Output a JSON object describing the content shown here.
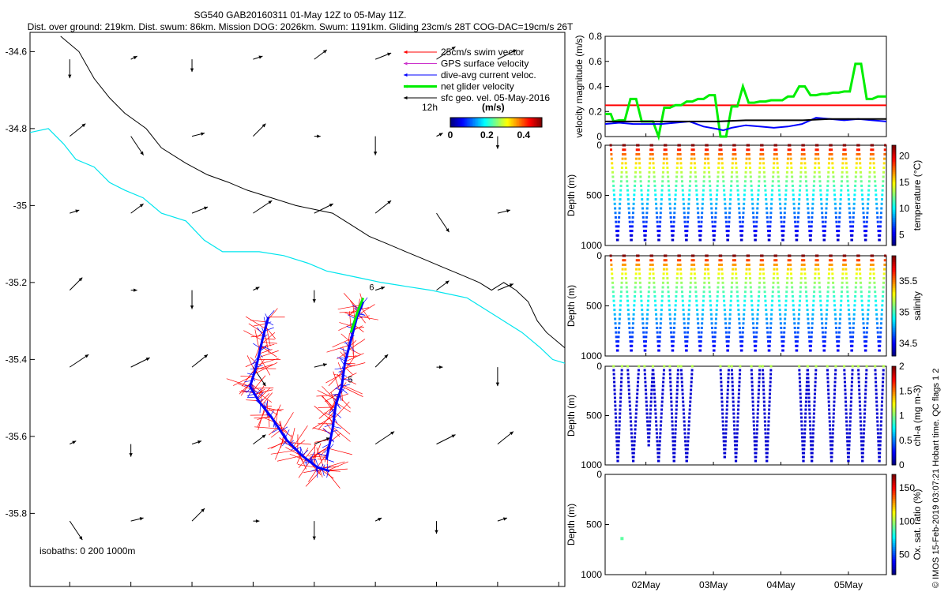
{
  "header": {
    "line1": "SG540 GAB20160311 01-May 12Z to 05-May 11Z.",
    "line2": "Dist. over ground: 219km. Dist. swum: 86km. Mission DOG: 2026km. Swum: 1191km. Gliding 23cm/s 28T COG-DAC=19cm/s 26T"
  },
  "footer_note": "© IMOS 15-Feb-2019 03:07:21 Hobart time. QC flags 1  2",
  "colors": {
    "swim": "#ff0000",
    "gps": "#cc33cc",
    "dac": "#0000ff",
    "net": "#00ee00",
    "sfc": "#000000",
    "isobath_200": "#00e5ee",
    "isobath_1000": "#000000",
    "threshold": "#ff0000"
  },
  "chart_data": [
    {
      "type": "scatter",
      "name": "map",
      "xlim": [
        132.87,
        134.62
      ],
      "ylim": [
        -35.99,
        -34.55
      ],
      "xticks": [
        133,
        133.2,
        133.4,
        133.6,
        133.8,
        134,
        134.2,
        134.4,
        134.6
      ],
      "yticks": [
        -34.6,
        -34.8,
        -35,
        -35.2,
        -35.4,
        -35.6,
        -35.8
      ],
      "legend": {
        "placement": "top-right",
        "entries": [
          "25cm/s swim vector",
          "GPS surface velocity",
          "dive-avg current veloc.",
          "net glider velocity",
          "sfc geo. vel. 05-May-2016"
        ],
        "time_label": "12h",
        "units": "(m/s)",
        "colorbar_ticks": [
          "0",
          "0.2",
          "0.4"
        ],
        "colorbar_range": [
          0,
          0.5
        ]
      },
      "isobath_label": "isobaths: 0   200  1000m",
      "isobath_1000": [
        [
          132.97,
          34.56
        ],
        [
          133.03,
          34.6
        ],
        [
          133.08,
          34.67
        ],
        [
          133.13,
          34.72
        ],
        [
          133.18,
          34.76
        ],
        [
          133.25,
          34.8
        ],
        [
          133.3,
          34.85
        ],
        [
          133.38,
          34.89
        ],
        [
          133.45,
          34.92
        ],
        [
          133.52,
          34.94
        ],
        [
          133.58,
          34.96
        ],
        [
          133.66,
          34.98
        ],
        [
          133.74,
          35.0
        ],
        [
          133.8,
          35.01
        ],
        [
          133.86,
          35.02
        ],
        [
          133.92,
          35.05
        ],
        [
          133.98,
          35.08
        ],
        [
          134.04,
          35.1
        ],
        [
          134.1,
          35.12
        ],
        [
          134.16,
          35.14
        ],
        [
          134.22,
          35.16
        ],
        [
          134.28,
          35.18
        ],
        [
          134.34,
          35.2
        ],
        [
          134.38,
          35.22
        ],
        [
          134.42,
          35.2
        ],
        [
          134.46,
          35.22
        ],
        [
          134.5,
          35.25
        ],
        [
          134.53,
          35.3
        ],
        [
          134.56,
          35.33
        ],
        [
          134.62,
          35.37
        ]
      ],
      "isobath_200": [
        [
          132.87,
          34.81
        ],
        [
          132.93,
          34.8
        ],
        [
          132.98,
          34.84
        ],
        [
          133.02,
          34.88
        ],
        [
          133.08,
          34.9
        ],
        [
          133.13,
          34.94
        ],
        [
          133.18,
          34.96
        ],
        [
          133.24,
          34.98
        ],
        [
          133.3,
          35.02
        ],
        [
          133.38,
          35.04
        ],
        [
          133.44,
          35.09
        ],
        [
          133.5,
          35.12
        ],
        [
          133.56,
          35.12
        ],
        [
          133.62,
          35.12
        ],
        [
          133.7,
          35.13
        ],
        [
          133.78,
          35.15
        ],
        [
          133.84,
          35.17
        ],
        [
          133.9,
          35.18
        ],
        [
          133.96,
          35.19
        ],
        [
          134.02,
          35.2
        ],
        [
          134.1,
          35.21
        ],
        [
          134.18,
          35.22
        ],
        [
          134.24,
          35.23
        ],
        [
          134.3,
          35.24
        ],
        [
          134.36,
          35.27
        ],
        [
          134.42,
          35.3
        ],
        [
          134.48,
          35.33
        ],
        [
          134.54,
          35.37
        ],
        [
          134.58,
          35.4
        ],
        [
          134.62,
          35.41
        ]
      ],
      "track_west": [
        [
          133.65,
          35.29
        ],
        [
          133.63,
          35.35
        ],
        [
          133.61,
          35.42
        ],
        [
          133.59,
          35.47
        ],
        [
          133.62,
          35.51
        ],
        [
          133.66,
          35.55
        ],
        [
          133.71,
          35.61
        ],
        [
          133.76,
          35.65
        ],
        [
          133.81,
          35.68
        ],
        [
          133.85,
          35.69
        ]
      ],
      "track_east": [
        [
          133.84,
          35.66
        ],
        [
          133.86,
          35.58
        ],
        [
          133.87,
          35.52
        ],
        [
          133.89,
          35.47
        ],
        [
          133.9,
          35.41
        ],
        [
          133.92,
          35.35
        ],
        [
          133.94,
          35.29
        ],
        [
          133.96,
          35.25
        ]
      ],
      "net_glider_track": [
        [
          133.92,
          35.33
        ],
        [
          133.94,
          35.28
        ],
        [
          133.96,
          35.24
        ]
      ],
      "track_markers": [
        {
          "text": "6",
          "lon": 133.98,
          "lat": -35.22
        },
        {
          "text": "5",
          "lon": 133.91,
          "lat": -35.46
        }
      ],
      "sfc_vectors_u_v_ms": [
        [
          0.0,
          -0.3
        ],
        [
          0.1,
          0.05
        ],
        [
          0.0,
          -0.2
        ],
        [
          0.15,
          0.05
        ],
        [
          0.2,
          0.15
        ],
        [
          0.25,
          0.1
        ],
        [
          0.3,
          0.2
        ],
        [
          0.3,
          0.15
        ],
        [
          0.25,
          0.2
        ],
        [
          0.2,
          -0.3
        ],
        [
          0.2,
          0.05
        ],
        [
          0.2,
          0.2
        ],
        [
          0.1,
          0.0
        ]
      ]
    },
    {
      "type": "line",
      "name": "velocity magnitude",
      "ylabel": "velocity magnitude (m/s)",
      "ylim": [
        0,
        0.8
      ],
      "yticks": [
        0,
        0.2,
        0.4,
        0.6,
        0.8
      ],
      "threshold": 0.25,
      "series": [
        {
          "color": "#00ee00",
          "x": [
            0,
            0.02,
            0.03,
            0.05,
            0.07,
            0.09,
            0.11,
            0.13,
            0.15,
            0.17,
            0.19,
            0.21,
            0.23,
            0.25,
            0.27,
            0.29,
            0.31,
            0.33,
            0.35,
            0.37,
            0.39,
            0.41,
            0.43,
            0.45,
            0.47,
            0.49,
            0.51,
            0.53,
            0.55,
            0.57,
            0.59,
            0.61,
            0.63,
            0.65,
            0.67,
            0.69,
            0.71,
            0.73,
            0.75,
            0.77,
            0.79,
            0.81,
            0.83,
            0.85,
            0.87,
            0.89,
            0.91,
            0.93,
            0.95,
            0.97,
            1.0
          ],
          "y": [
            0.18,
            0.18,
            0.12,
            0.13,
            0.13,
            0.3,
            0.3,
            0.12,
            0.12,
            0.12,
            0.0,
            0.23,
            0.23,
            0.25,
            0.25,
            0.28,
            0.28,
            0.3,
            0.3,
            0.33,
            0.33,
            0.0,
            0.0,
            0.24,
            0.24,
            0.4,
            0.27,
            0.27,
            0.28,
            0.28,
            0.29,
            0.29,
            0.29,
            0.32,
            0.32,
            0.4,
            0.4,
            0.33,
            0.33,
            0.34,
            0.34,
            0.35,
            0.35,
            0.36,
            0.36,
            0.58,
            0.58,
            0.3,
            0.3,
            0.32,
            0.32
          ]
        },
        {
          "color": "#0000ff",
          "x": [
            0,
            0.05,
            0.1,
            0.15,
            0.2,
            0.25,
            0.3,
            0.35,
            0.4,
            0.42,
            0.45,
            0.5,
            0.55,
            0.6,
            0.65,
            0.7,
            0.75,
            0.8,
            0.85,
            0.9,
            0.95,
            1.0
          ],
          "y": [
            0.1,
            0.11,
            0.1,
            0.1,
            0.1,
            0.11,
            0.12,
            0.08,
            0.06,
            0.05,
            0.07,
            0.09,
            0.08,
            0.07,
            0.08,
            0.1,
            0.15,
            0.14,
            0.13,
            0.14,
            0.13,
            0.12
          ]
        },
        {
          "color": "#000000",
          "x": [
            0,
            0.1,
            0.2,
            0.3,
            0.4,
            0.5,
            0.6,
            0.7,
            0.8,
            0.9,
            1.0
          ],
          "y": [
            0.12,
            0.12,
            0.12,
            0.12,
            0.12,
            0.13,
            0.13,
            0.13,
            0.14,
            0.14,
            0.14
          ]
        }
      ]
    },
    {
      "type": "scatter",
      "name": "temperature",
      "ylabel": "Depth (m)",
      "ylim": [
        1000,
        0
      ],
      "yticks": [
        0,
        500,
        1000
      ],
      "colorbar_label": "temperature (°C)",
      "colorbar_ticks": [
        5,
        10,
        15,
        20
      ],
      "colorbar_range": [
        3,
        22
      ],
      "dives": 20
    },
    {
      "type": "scatter",
      "name": "salinity",
      "ylabel": "Depth (m)",
      "ylim": [
        1000,
        0
      ],
      "yticks": [
        0,
        500,
        1000
      ],
      "colorbar_label": "salinity",
      "colorbar_ticks": [
        34.5,
        35,
        35.5
      ],
      "colorbar_range": [
        34.3,
        35.9
      ],
      "dives": 20
    },
    {
      "type": "scatter",
      "name": "chl-a",
      "ylabel": "Depth (m)",
      "ylim": [
        1000,
        0
      ],
      "yticks": [
        0,
        500,
        1000
      ],
      "colorbar_label": "chl-a (mg m-3)",
      "colorbar_ticks": [
        0,
        0.5,
        1,
        1.5,
        2
      ],
      "colorbar_range": [
        0,
        2
      ],
      "profiles": [
        [
          0.03,
          0.06,
          980
        ],
        [
          0.08,
          0.12,
          980
        ],
        [
          0.14,
          0.17,
          800
        ],
        [
          0.17,
          0.21,
          990
        ],
        [
          0.23,
          0.26,
          990
        ],
        [
          0.27,
          0.31,
          990
        ],
        [
          0.41,
          0.44,
          950
        ],
        [
          0.45,
          0.48,
          980
        ],
        [
          0.52,
          0.55,
          990
        ],
        [
          0.56,
          0.59,
          990
        ],
        [
          0.69,
          0.72,
          990
        ],
        [
          0.72,
          0.75,
          990
        ],
        [
          0.79,
          0.82,
          990
        ],
        [
          0.85,
          0.88,
          990
        ],
        [
          0.9,
          0.93,
          990
        ],
        [
          0.96,
          0.99,
          990
        ]
      ]
    },
    {
      "type": "scatter",
      "name": "oxygen",
      "ylabel": "Depth (m)",
      "ylim": [
        1000,
        0
      ],
      "yticks": [
        0,
        500,
        1000
      ],
      "colorbar_label": "Ox. sat. ratio (%)",
      "colorbar_ticks": [
        50,
        100,
        150
      ],
      "colorbar_range": [
        20,
        170
      ],
      "points": [
        {
          "t": 0.06,
          "depth": 640,
          "value": 90
        }
      ]
    },
    {
      "type": "axis",
      "name": "time",
      "ticks": [
        "02May",
        "03May",
        "04May",
        "05May"
      ],
      "tick_positions": [
        0.145,
        0.385,
        0.625,
        0.865
      ]
    }
  ]
}
